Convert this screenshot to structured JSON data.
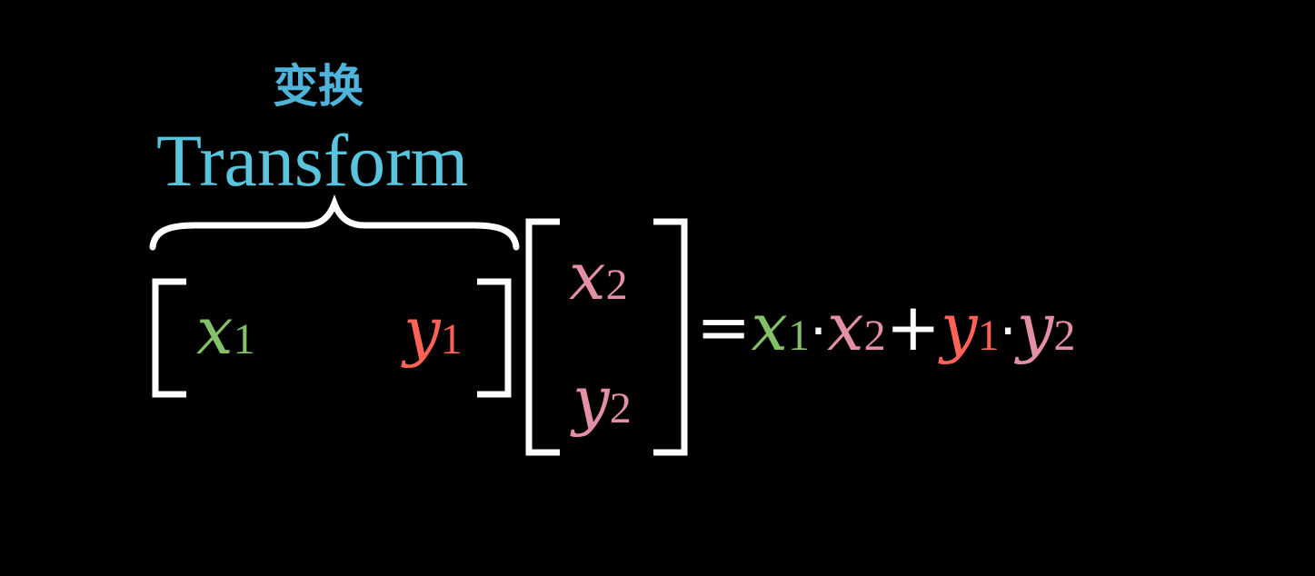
{
  "caption": {
    "chinese": "变换",
    "english": "Transform"
  },
  "row_vector": {
    "x1": {
      "var": "x",
      "sub": "1"
    },
    "y1": {
      "var": "y",
      "sub": "1"
    }
  },
  "column_vector": {
    "x2": {
      "var": "x",
      "sub": "2"
    },
    "y2": {
      "var": "y",
      "sub": "2"
    }
  },
  "result": {
    "equals": "=",
    "t1a": {
      "var": "x",
      "sub": "1"
    },
    "dot1": "·",
    "t1b": {
      "var": "x",
      "sub": "2"
    },
    "plus": "+",
    "t2a": {
      "var": "y",
      "sub": "1"
    },
    "dot2": "·",
    "t2b": {
      "var": "y",
      "sub": "2"
    }
  },
  "colors": {
    "background": "#000000",
    "caption": "#58c4dd",
    "x1": "#83c167",
    "y1": "#fc6255",
    "vector2": "#e38fa5",
    "operators": "#ffffff"
  }
}
